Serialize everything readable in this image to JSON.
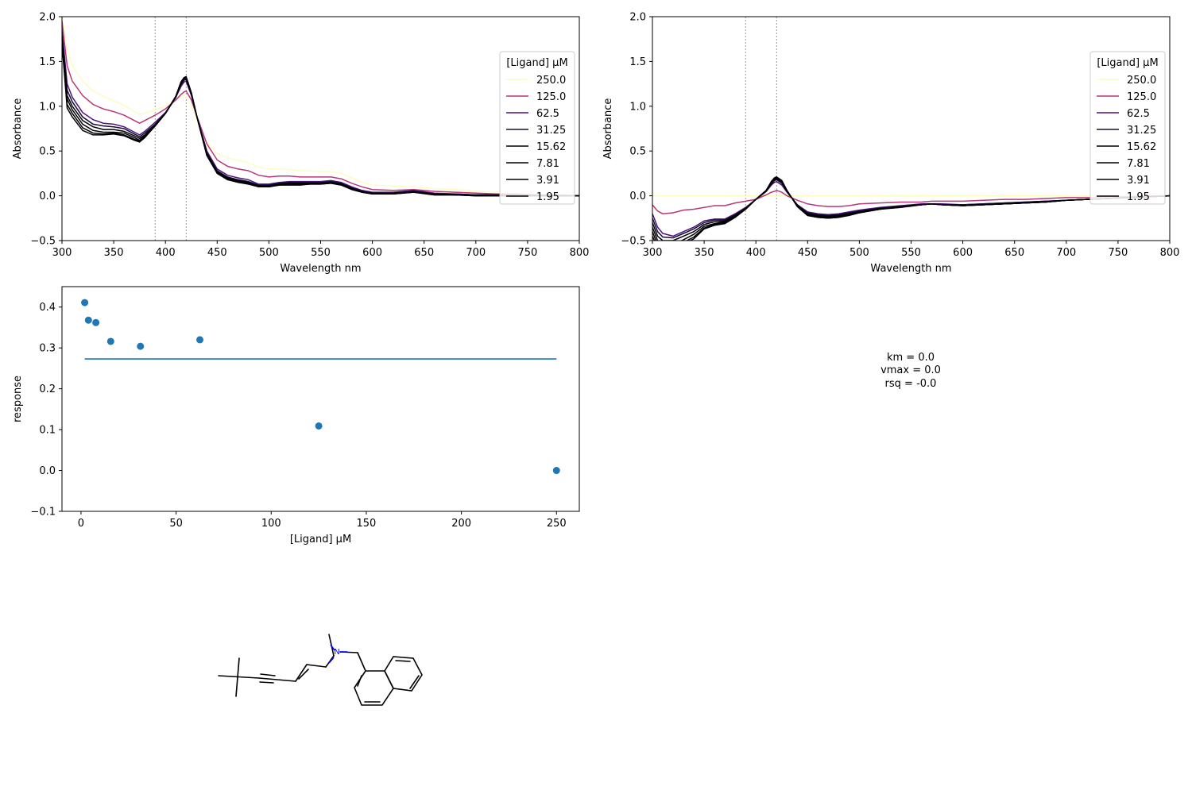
{
  "colors": {
    "series": [
      "#fcfdbf",
      "#b73779",
      "#51127c",
      "#140e36",
      "#000004",
      "#000004",
      "#000004",
      "#000004"
    ],
    "scatter": "#1f77b4",
    "fit": "#1f77b4",
    "nitrogen": "#0000ff",
    "bond": "#000000"
  },
  "chart_data": [
    {
      "type": "line",
      "panel": "raw-spectra",
      "xlabel": "Wavelength nm",
      "ylabel": "Absorbance",
      "xlim": [
        300,
        800
      ],
      "ylim": [
        -0.5,
        2.0
      ],
      "xticks": [
        "300",
        "350",
        "400",
        "450",
        "500",
        "550",
        "600",
        "650",
        "700",
        "750",
        "800"
      ],
      "yticks": [
        "−0.5",
        "0.0",
        "0.5",
        "1.0",
        "1.5",
        "2.0"
      ],
      "vlines": [
        390,
        420
      ],
      "legend_title": "[Ligand] µM",
      "legend_position": "center-right",
      "grid": false,
      "x": [
        300,
        305,
        310,
        320,
        330,
        340,
        350,
        360,
        370,
        375,
        380,
        390,
        400,
        410,
        415,
        418,
        420,
        425,
        430,
        440,
        450,
        460,
        470,
        480,
        490,
        500,
        510,
        520,
        530,
        540,
        550,
        560,
        570,
        580,
        590,
        600,
        620,
        640,
        660,
        680,
        700,
        720,
        740,
        760,
        780,
        800
      ],
      "series": [
        {
          "name": "250.0",
          "values": [
            2.0,
            1.65,
            1.45,
            1.28,
            1.17,
            1.11,
            1.06,
            1.01,
            0.94,
            0.91,
            0.92,
            0.96,
            1.01,
            1.07,
            1.11,
            1.12,
            1.11,
            1.0,
            0.85,
            0.6,
            0.47,
            0.42,
            0.4,
            0.37,
            0.32,
            0.3,
            0.3,
            0.29,
            0.28,
            0.28,
            0.27,
            0.27,
            0.25,
            0.2,
            0.15,
            0.12,
            0.11,
            0.1,
            0.08,
            0.07,
            0.05,
            0.04,
            0.03,
            0.02,
            0.01,
            0.0
          ]
        },
        {
          "name": "125.0",
          "values": [
            1.95,
            1.45,
            1.28,
            1.12,
            1.02,
            0.97,
            0.94,
            0.9,
            0.84,
            0.81,
            0.84,
            0.9,
            0.97,
            1.07,
            1.13,
            1.16,
            1.17,
            1.07,
            0.9,
            0.58,
            0.4,
            0.33,
            0.3,
            0.28,
            0.23,
            0.21,
            0.22,
            0.22,
            0.21,
            0.21,
            0.21,
            0.21,
            0.19,
            0.14,
            0.1,
            0.07,
            0.06,
            0.07,
            0.05,
            0.04,
            0.03,
            0.02,
            0.02,
            0.01,
            0.01,
            0.0
          ]
        },
        {
          "name": "62.5",
          "values": [
            1.85,
            1.25,
            1.1,
            0.93,
            0.85,
            0.81,
            0.8,
            0.77,
            0.71,
            0.68,
            0.72,
            0.82,
            0.93,
            1.1,
            1.22,
            1.27,
            1.28,
            1.12,
            0.9,
            0.5,
            0.3,
            0.23,
            0.2,
            0.18,
            0.13,
            0.13,
            0.15,
            0.16,
            0.16,
            0.16,
            0.16,
            0.17,
            0.15,
            0.1,
            0.06,
            0.04,
            0.04,
            0.06,
            0.03,
            0.02,
            0.01,
            0.01,
            0.01,
            0.01,
            0.0,
            0.0
          ]
        },
        {
          "name": "31.25",
          "values": [
            1.8,
            1.18,
            1.05,
            0.88,
            0.8,
            0.78,
            0.77,
            0.75,
            0.69,
            0.66,
            0.7,
            0.8,
            0.92,
            1.1,
            1.24,
            1.29,
            1.3,
            1.13,
            0.9,
            0.48,
            0.28,
            0.21,
            0.18,
            0.16,
            0.12,
            0.12,
            0.14,
            0.15,
            0.15,
            0.15,
            0.15,
            0.16,
            0.14,
            0.09,
            0.05,
            0.03,
            0.03,
            0.05,
            0.02,
            0.02,
            0.01,
            0.01,
            0.01,
            0.0,
            0.0,
            0.0
          ]
        },
        {
          "name": "15.62",
          "values": [
            1.78,
            1.12,
            1.0,
            0.84,
            0.77,
            0.74,
            0.74,
            0.72,
            0.67,
            0.64,
            0.68,
            0.79,
            0.92,
            1.1,
            1.25,
            1.3,
            1.31,
            1.14,
            0.9,
            0.47,
            0.27,
            0.2,
            0.17,
            0.15,
            0.11,
            0.11,
            0.13,
            0.14,
            0.14,
            0.14,
            0.14,
            0.15,
            0.13,
            0.08,
            0.05,
            0.03,
            0.03,
            0.05,
            0.02,
            0.01,
            0.01,
            0.01,
            0.0,
            0.0,
            0.0,
            0.0
          ]
        },
        {
          "name": "7.81",
          "values": [
            1.75,
            1.08,
            0.96,
            0.8,
            0.73,
            0.71,
            0.71,
            0.7,
            0.65,
            0.62,
            0.67,
            0.78,
            0.92,
            1.11,
            1.26,
            1.31,
            1.32,
            1.15,
            0.9,
            0.46,
            0.26,
            0.19,
            0.16,
            0.14,
            0.11,
            0.11,
            0.13,
            0.13,
            0.13,
            0.14,
            0.14,
            0.15,
            0.13,
            0.08,
            0.04,
            0.03,
            0.03,
            0.04,
            0.02,
            0.01,
            0.01,
            0.0,
            0.0,
            0.0,
            0.0,
            0.0
          ]
        },
        {
          "name": "3.91",
          "values": [
            1.72,
            1.02,
            0.92,
            0.76,
            0.7,
            0.69,
            0.7,
            0.68,
            0.63,
            0.61,
            0.66,
            0.78,
            0.92,
            1.11,
            1.27,
            1.32,
            1.33,
            1.15,
            0.9,
            0.45,
            0.26,
            0.18,
            0.16,
            0.14,
            0.1,
            0.1,
            0.12,
            0.13,
            0.13,
            0.13,
            0.13,
            0.14,
            0.12,
            0.07,
            0.04,
            0.02,
            0.02,
            0.04,
            0.01,
            0.01,
            0.0,
            0.0,
            0.0,
            0.0,
            0.0,
            0.0
          ]
        },
        {
          "name": "1.95",
          "values": [
            1.7,
            0.98,
            0.88,
            0.73,
            0.68,
            0.68,
            0.69,
            0.67,
            0.62,
            0.6,
            0.65,
            0.78,
            0.92,
            1.11,
            1.27,
            1.32,
            1.33,
            1.15,
            0.9,
            0.45,
            0.25,
            0.18,
            0.15,
            0.13,
            0.1,
            0.1,
            0.12,
            0.12,
            0.12,
            0.13,
            0.13,
            0.14,
            0.12,
            0.07,
            0.04,
            0.02,
            0.02,
            0.04,
            0.01,
            0.01,
            0.0,
            0.0,
            0.0,
            0.0,
            0.0,
            0.0
          ]
        }
      ]
    },
    {
      "type": "line",
      "panel": "difference-spectra",
      "xlabel": "Wavelength nm",
      "ylabel": "Absorbance",
      "xlim": [
        300,
        800
      ],
      "ylim": [
        -0.5,
        2.0
      ],
      "xticks": [
        "300",
        "350",
        "400",
        "450",
        "500",
        "550",
        "600",
        "650",
        "700",
        "750",
        "800"
      ],
      "yticks": [
        "−0.5",
        "0.0",
        "0.5",
        "1.0",
        "1.5",
        "2.0"
      ],
      "vlines": [
        390,
        420
      ],
      "legend_title": "[Ligand] µM",
      "legend_position": "center-right",
      "grid": false,
      "x": [
        300,
        305,
        310,
        320,
        330,
        340,
        350,
        360,
        370,
        380,
        390,
        400,
        410,
        415,
        418,
        420,
        425,
        430,
        440,
        450,
        460,
        470,
        480,
        490,
        500,
        520,
        540,
        560,
        570,
        580,
        600,
        620,
        640,
        660,
        680,
        700,
        720,
        740,
        760,
        780,
        800
      ],
      "series": [
        {
          "name": "250.0",
          "values": [
            0,
            0,
            0,
            0,
            0,
            0,
            0,
            0,
            0,
            0,
            0,
            0,
            0,
            0,
            0,
            0,
            0,
            0,
            0,
            0,
            0,
            0,
            0,
            0,
            0,
            0,
            0,
            0,
            0,
            0,
            0,
            0,
            0,
            0,
            0,
            0,
            0,
            0,
            0,
            0,
            0
          ]
        },
        {
          "name": "125.0",
          "values": [
            -0.1,
            -0.17,
            -0.2,
            -0.19,
            -0.16,
            -0.15,
            -0.13,
            -0.11,
            -0.11,
            -0.08,
            -0.06,
            -0.04,
            0.01,
            0.04,
            0.05,
            0.06,
            0.04,
            0.0,
            -0.05,
            -0.09,
            -0.11,
            -0.12,
            -0.12,
            -0.11,
            -0.09,
            -0.08,
            -0.07,
            -0.07,
            -0.06,
            -0.06,
            -0.06,
            -0.05,
            -0.04,
            -0.04,
            -0.03,
            -0.02,
            -0.02,
            -0.01,
            -0.01,
            0.0,
            0.0
          ]
        },
        {
          "name": "62.5",
          "values": [
            -0.2,
            -0.35,
            -0.42,
            -0.45,
            -0.4,
            -0.35,
            -0.28,
            -0.26,
            -0.26,
            -0.2,
            -0.13,
            -0.04,
            0.05,
            0.12,
            0.15,
            0.16,
            0.12,
            0.04,
            -0.1,
            -0.18,
            -0.2,
            -0.21,
            -0.2,
            -0.18,
            -0.16,
            -0.13,
            -0.11,
            -0.09,
            -0.09,
            -0.09,
            -0.1,
            -0.09,
            -0.08,
            -0.07,
            -0.06,
            -0.05,
            -0.04,
            -0.03,
            -0.02,
            -0.01,
            0.0
          ]
        },
        {
          "name": "31.25",
          "values": [
            -0.25,
            -0.4,
            -0.46,
            -0.47,
            -0.42,
            -0.37,
            -0.3,
            -0.27,
            -0.27,
            -0.21,
            -0.14,
            -0.04,
            0.05,
            0.13,
            0.17,
            0.18,
            0.14,
            0.05,
            -0.1,
            -0.19,
            -0.21,
            -0.22,
            -0.21,
            -0.19,
            -0.17,
            -0.14,
            -0.12,
            -0.1,
            -0.09,
            -0.1,
            -0.1,
            -0.09,
            -0.08,
            -0.07,
            -0.06,
            -0.05,
            -0.04,
            -0.03,
            -0.02,
            -0.01,
            0.0
          ]
        },
        {
          "name": "15.62",
          "values": [
            -0.3,
            -0.45,
            -0.5,
            -0.5,
            -0.45,
            -0.4,
            -0.32,
            -0.29,
            -0.28,
            -0.22,
            -0.14,
            -0.04,
            0.05,
            0.14,
            0.18,
            0.19,
            0.15,
            0.05,
            -0.11,
            -0.2,
            -0.22,
            -0.23,
            -0.22,
            -0.2,
            -0.18,
            -0.14,
            -0.12,
            -0.1,
            -0.09,
            -0.1,
            -0.11,
            -0.1,
            -0.09,
            -0.08,
            -0.07,
            -0.05,
            -0.04,
            -0.03,
            -0.02,
            -0.01,
            0.0
          ]
        },
        {
          "name": "7.81",
          "values": [
            -0.35,
            -0.5,
            -0.54,
            -0.54,
            -0.49,
            -0.43,
            -0.34,
            -0.31,
            -0.29,
            -0.23,
            -0.15,
            -0.04,
            0.06,
            0.15,
            0.19,
            0.2,
            0.16,
            0.05,
            -0.11,
            -0.21,
            -0.23,
            -0.24,
            -0.23,
            -0.21,
            -0.18,
            -0.15,
            -0.12,
            -0.1,
            -0.09,
            -0.1,
            -0.11,
            -0.1,
            -0.09,
            -0.08,
            -0.07,
            -0.05,
            -0.04,
            -0.03,
            -0.02,
            -0.01,
            0.0
          ]
        },
        {
          "name": "3.91",
          "values": [
            -0.4,
            -0.55,
            -0.58,
            -0.57,
            -0.52,
            -0.46,
            -0.36,
            -0.32,
            -0.3,
            -0.23,
            -0.15,
            -0.04,
            0.06,
            0.16,
            0.2,
            0.21,
            0.17,
            0.06,
            -0.12,
            -0.22,
            -0.24,
            -0.25,
            -0.24,
            -0.21,
            -0.19,
            -0.15,
            -0.12,
            -0.1,
            -0.09,
            -0.1,
            -0.11,
            -0.1,
            -0.09,
            -0.08,
            -0.07,
            -0.05,
            -0.04,
            -0.03,
            -0.02,
            -0.01,
            0.0
          ]
        },
        {
          "name": "1.95",
          "values": [
            -0.45,
            -0.58,
            -0.6,
            -0.59,
            -0.54,
            -0.48,
            -0.37,
            -0.33,
            -0.31,
            -0.24,
            -0.15,
            -0.04,
            0.06,
            0.16,
            0.2,
            0.21,
            0.17,
            0.06,
            -0.12,
            -0.22,
            -0.24,
            -0.25,
            -0.24,
            -0.22,
            -0.19,
            -0.15,
            -0.13,
            -0.1,
            -0.09,
            -0.1,
            -0.11,
            -0.1,
            -0.09,
            -0.08,
            -0.07,
            -0.05,
            -0.04,
            -0.03,
            -0.02,
            -0.01,
            0.0
          ]
        }
      ]
    },
    {
      "type": "scatter",
      "panel": "binding-response",
      "xlabel": "[Ligand] µM",
      "ylabel": "response",
      "xlim": [
        -10,
        262
      ],
      "ylim": [
        -0.1,
        0.45
      ],
      "xticks": [
        0,
        50,
        100,
        150,
        200,
        250
      ],
      "xtick_labels": [
        "0",
        "50",
        "100",
        "150",
        "200",
        "250"
      ],
      "yticks": [
        -0.1,
        0.0,
        0.1,
        0.2,
        0.3,
        0.4
      ],
      "ytick_labels": [
        "−0.1",
        "0.0",
        "0.1",
        "0.2",
        "0.3",
        "0.4"
      ],
      "x": [
        1.95,
        3.91,
        7.81,
        15.62,
        31.25,
        62.5,
        125.0,
        250.0
      ],
      "values": [
        0.411,
        0.368,
        0.362,
        0.316,
        0.304,
        0.32,
        0.109,
        0.0
      ],
      "fit": {
        "x": [
          1.95,
          250.0
        ],
        "values": [
          0.273,
          0.273
        ]
      },
      "grid": false
    }
  ],
  "fit_summary": {
    "km": "km = 0.0",
    "vmax": "vmax = 0.0",
    "rsq": "rsq = -0.0"
  },
  "molecule": {
    "atom_label": "N"
  }
}
